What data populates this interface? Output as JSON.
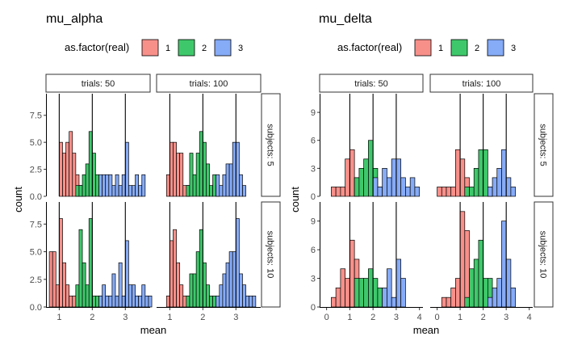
{
  "colors": {
    "1": "#F8908A",
    "2": "#3FC86B",
    "3": "#86ABF7",
    "bar_stroke": "#000000",
    "vline": "#000000"
  },
  "legend": {
    "title": "as.factor(real)",
    "levels": [
      "1",
      "2",
      "3"
    ]
  },
  "strips": {
    "col": [
      "trials: 50",
      "trials: 100"
    ],
    "row": [
      "subjects: 5",
      "subjects: 10"
    ]
  },
  "x_title": "mean",
  "y_title": "count",
  "chart_data": [
    {
      "type": "bar",
      "title": "mu_alpha",
      "xlabel": "mean",
      "ylabel": "count",
      "xlim": [
        0.6,
        3.75
      ],
      "xticks": [
        1,
        2,
        3
      ],
      "ylim": [
        0,
        9.5
      ],
      "yticks": [
        0,
        2.5,
        5.0,
        7.5
      ],
      "ytick_labels": [
        "0.0",
        "2.5",
        "5.0",
        "7.5"
      ],
      "vlines": [
        1,
        2,
        3
      ],
      "binwidth": 0.1,
      "panels": [
        {
          "row": 0,
          "col": 0,
          "series": [
            {
              "level": "1",
              "x": [
                1.05,
                1.15,
                1.25,
                1.35,
                1.45,
                1.55,
                1.65,
                1.75
              ],
              "values": [
                5,
                4,
                5,
                6,
                4,
                2,
                1,
                1
              ]
            },
            {
              "level": "2",
              "x": [
                1.55,
                1.65,
                1.75,
                1.85,
                1.95,
                2.05,
                2.15,
                2.25
              ],
              "values": [
                1,
                1,
                2,
                3,
                6,
                4,
                2,
                1
              ]
            },
            {
              "level": "3",
              "x": [
                2.25,
                2.35,
                2.45,
                2.55,
                2.65,
                2.75,
                2.85,
                2.95,
                3.05,
                3.15,
                3.25,
                3.35,
                3.45,
                3.55
              ],
              "values": [
                2,
                2,
                2,
                2,
                1,
                2,
                1,
                2,
                5,
                1,
                1,
                2,
                1,
                2
              ]
            }
          ]
        },
        {
          "row": 0,
          "col": 1,
          "series": [
            {
              "level": "1",
              "x": [
                0.95,
                1.05,
                1.15,
                1.25,
                1.35,
                1.45,
                1.55
              ],
              "values": [
                2,
                5,
                5,
                4,
                4,
                1,
                1
              ]
            },
            {
              "level": "2",
              "x": [
                1.55,
                1.65,
                1.75,
                1.85,
                1.95,
                2.05,
                2.15,
                2.25,
                2.35,
                2.45
              ],
              "values": [
                1,
                4,
                2,
                4,
                6,
                5,
                3,
                1,
                2,
                1
              ]
            },
            {
              "level": "3",
              "x": [
                2.45,
                2.55,
                2.65,
                2.75,
                2.85,
                2.95,
                3.05,
                3.15,
                3.25
              ],
              "values": [
                2,
                1,
                2,
                3,
                3,
                5,
                5,
                2,
                1
              ]
            }
          ]
        },
        {
          "row": 1,
          "col": 0,
          "series": [
            {
              "level": "1",
              "x": [
                0.75,
                0.85,
                0.95,
                1.05,
                1.15,
                1.25,
                1.35,
                1.45,
                1.55
              ],
              "values": [
                5,
                5,
                2,
                8,
                4,
                2,
                1,
                1,
                1
              ]
            },
            {
              "level": "2",
              "x": [
                1.55,
                1.65,
                1.75,
                1.85,
                1.95,
                2.05,
                2.15,
                2.25
              ],
              "values": [
                2,
                7,
                4,
                2,
                8,
                1,
                1,
                1
              ]
            },
            {
              "level": "3",
              "x": [
                2.25,
                2.35,
                2.45,
                2.55,
                2.65,
                2.75,
                2.85,
                2.95,
                3.05,
                3.15,
                3.25,
                3.35,
                3.45,
                3.55,
                3.65,
                3.75
              ],
              "values": [
                1,
                2,
                1,
                1,
                3,
                1,
                4,
                1,
                6,
                2,
                2,
                1,
                1,
                2,
                1,
                1
              ]
            }
          ]
        },
        {
          "row": 1,
          "col": 1,
          "series": [
            {
              "level": "1",
              "x": [
                0.95,
                1.05,
                1.15,
                1.25,
                1.35,
                1.45,
                1.55
              ],
              "values": [
                1,
                6,
                7,
                4,
                2,
                1,
                1
              ]
            },
            {
              "level": "2",
              "x": [
                1.55,
                1.65,
                1.75,
                1.85,
                1.95,
                2.05,
                2.15,
                2.25,
                2.35
              ],
              "values": [
                1,
                3,
                3,
                5,
                7,
                4,
                2,
                1,
                1
              ]
            },
            {
              "level": "3",
              "x": [
                2.45,
                2.55,
                2.65,
                2.75,
                2.85,
                2.95,
                3.05,
                3.15,
                3.25,
                3.35,
                3.45,
                3.55
              ],
              "values": [
                1,
                2,
                3,
                4,
                5,
                5,
                8,
                3,
                2,
                1,
                1,
                1
              ]
            }
          ]
        }
      ]
    },
    {
      "type": "bar",
      "title": "mu_delta",
      "xlabel": "mean",
      "ylabel": "count",
      "xlim": [
        -0.3,
        4.15
      ],
      "xticks": [
        0,
        1,
        2,
        3,
        4
      ],
      "ylim": [
        0,
        11
      ],
      "yticks": [
        0,
        3,
        6,
        9
      ],
      "ytick_labels": [
        "0",
        "3",
        "6",
        "9"
      ],
      "vlines": [
        1,
        2,
        3
      ],
      "binwidth": 0.2,
      "panels": [
        {
          "row": 0,
          "col": 0,
          "series": [
            {
              "level": "1",
              "x": [
                0.3,
                0.5,
                0.7,
                0.9,
                1.1,
                1.3
              ],
              "values": [
                1,
                1,
                1,
                4,
                5,
                2
              ]
            },
            {
              "level": "2",
              "x": [
                1.3,
                1.5,
                1.7,
                1.9,
                2.1,
                2.3
              ],
              "values": [
                2,
                3,
                4,
                6,
                3,
                1
              ]
            },
            {
              "level": "3",
              "x": [
                2.1,
                2.3,
                2.5,
                2.7,
                2.9,
                3.1,
                3.3,
                3.5,
                3.7,
                3.9
              ],
              "values": [
                2,
                1,
                3,
                2,
                4,
                4,
                2,
                1,
                2,
                1
              ]
            }
          ]
        },
        {
          "row": 0,
          "col": 1,
          "series": [
            {
              "level": "1",
              "x": [
                0.1,
                0.3,
                0.5,
                0.7,
                0.9,
                1.1,
                1.3
              ],
              "values": [
                1,
                1,
                1,
                1,
                5,
                4,
                2
              ]
            },
            {
              "level": "2",
              "x": [
                1.3,
                1.5,
                1.7,
                1.9,
                2.1,
                2.3
              ],
              "values": [
                1,
                1,
                3,
                5,
                5,
                1
              ]
            },
            {
              "level": "3",
              "x": [
                2.3,
                2.5,
                2.7,
                2.9,
                3.1,
                3.3
              ],
              "values": [
                1,
                2,
                3,
                5,
                2,
                1
              ]
            }
          ]
        },
        {
          "row": 1,
          "col": 0,
          "series": [
            {
              "level": "1",
              "x": [
                0.3,
                0.5,
                0.7,
                0.9,
                1.1,
                1.3
              ],
              "values": [
                1,
                2,
                4,
                3,
                7,
                5
              ]
            },
            {
              "level": "2",
              "x": [
                1.3,
                1.5,
                1.7,
                1.9,
                2.1,
                2.3
              ],
              "values": [
                3,
                3,
                3,
                4,
                3,
                2
              ]
            },
            {
              "level": "3",
              "x": [
                2.5,
                2.7,
                2.9,
                3.1,
                3.3
              ],
              "values": [
                2,
                4,
                1,
                5,
                3
              ]
            }
          ]
        },
        {
          "row": 1,
          "col": 1,
          "series": [
            {
              "level": "1",
              "x": [
                0.3,
                0.5,
                0.7,
                0.9,
                1.1,
                1.3
              ],
              "values": [
                1,
                1,
                2,
                3,
                10,
                8
              ]
            },
            {
              "level": "2",
              "x": [
                1.3,
                1.5,
                1.7,
                1.9,
                2.1,
                2.3
              ],
              "values": [
                1,
                4,
                5,
                7,
                3,
                3
              ]
            },
            {
              "level": "3",
              "x": [
                2.3,
                2.5,
                2.7,
                2.9,
                3.1,
                3.3
              ],
              "values": [
                1,
                2,
                3,
                9,
                5,
                2
              ]
            }
          ]
        }
      ]
    }
  ]
}
